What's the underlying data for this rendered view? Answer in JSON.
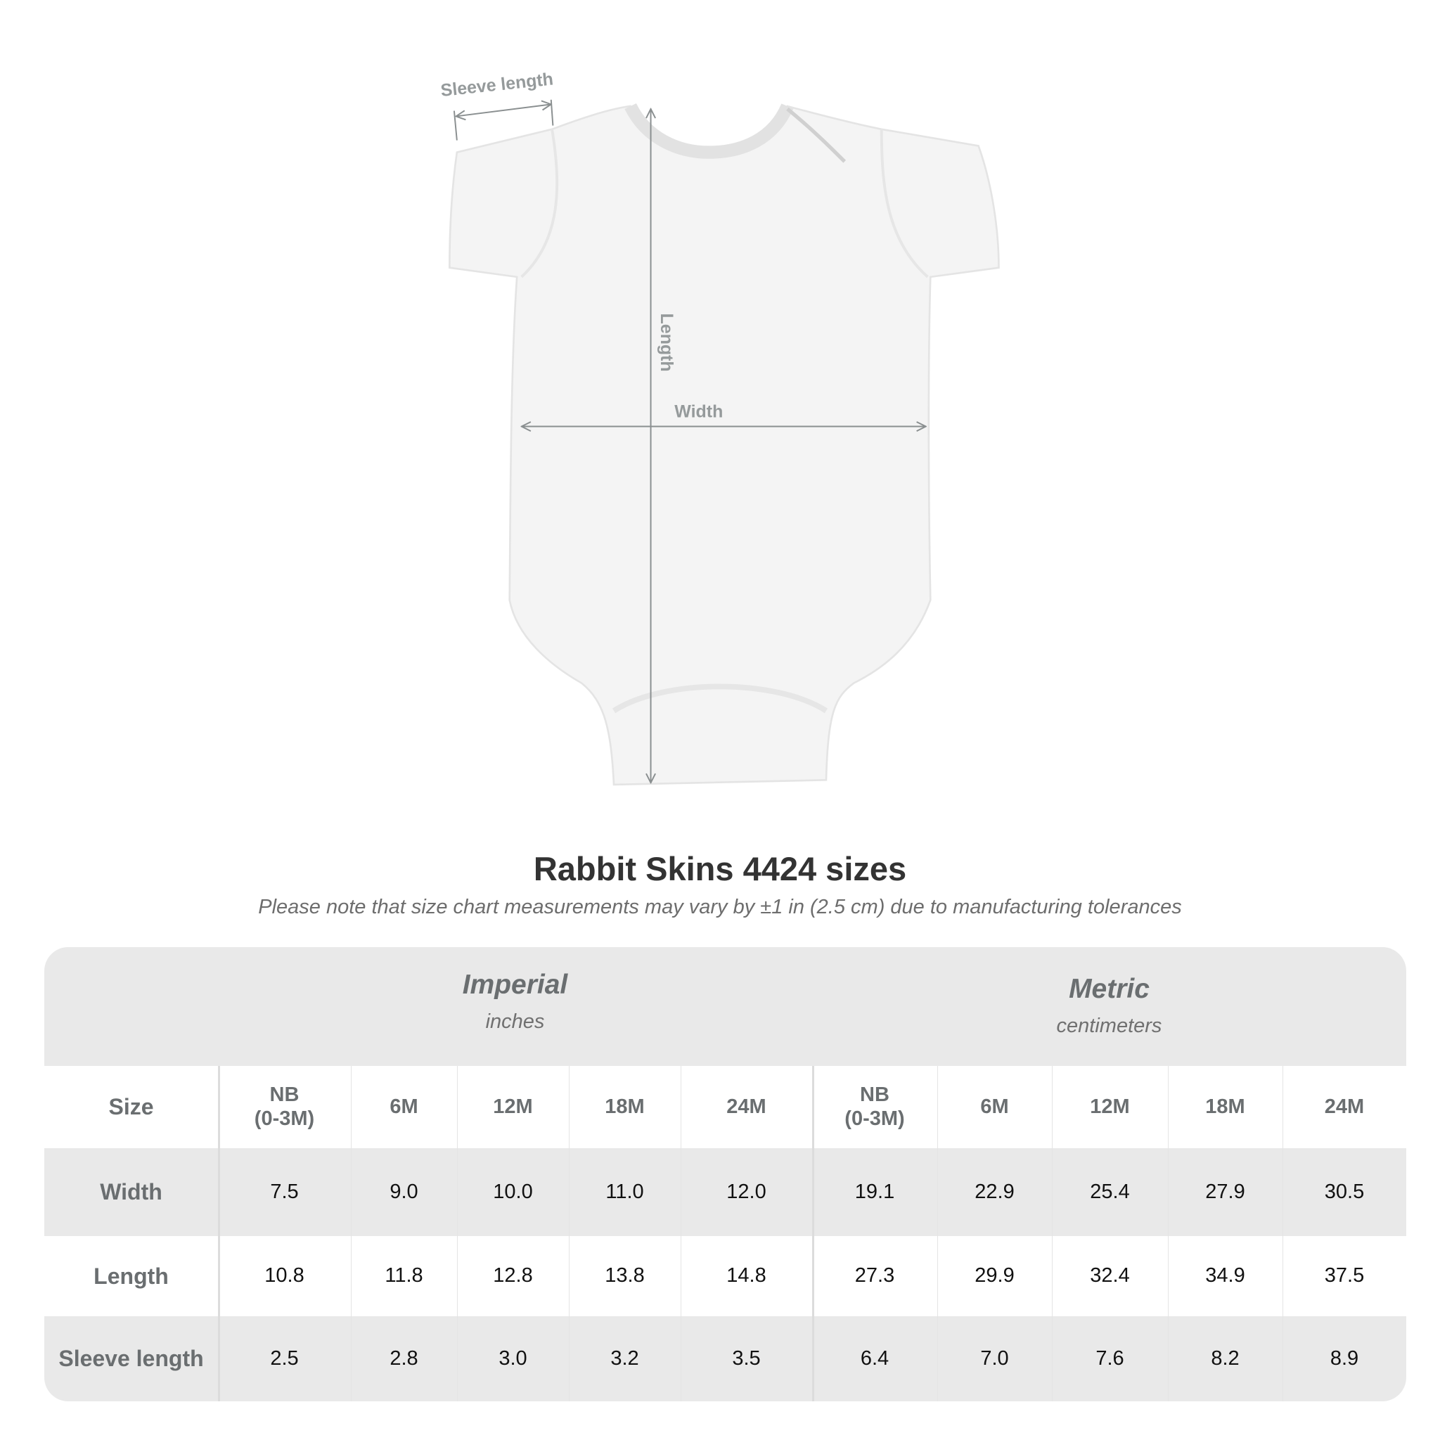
{
  "diagram": {
    "labels": {
      "sleeve": "Sleeve length",
      "length": "Length",
      "width": "Width"
    },
    "garment_color": "#f4f4f4",
    "arrow_color": "#8a8f90"
  },
  "title": "Rabbit Skins 4424 sizes",
  "subtitle": "Please note that size chart measurements may vary by ±1 in (2.5 cm) due to manufacturing tolerances",
  "table": {
    "groups": [
      {
        "name": "Imperial",
        "unit": "inches"
      },
      {
        "name": "Metric",
        "unit": "centimeters"
      }
    ],
    "size_label": "Size",
    "sizes": [
      "NB\n(0-3M)",
      "6M",
      "12M",
      "18M",
      "24M",
      "NB\n(0-3M)",
      "6M",
      "12M",
      "18M",
      "24M"
    ],
    "rows": [
      {
        "label": "Width",
        "values": [
          "7.5",
          "9.0",
          "10.0",
          "11.0",
          "12.0",
          "19.1",
          "22.9",
          "25.4",
          "27.9",
          "30.5"
        ]
      },
      {
        "label": "Length",
        "values": [
          "10.8",
          "11.8",
          "12.8",
          "13.8",
          "14.8",
          "27.3",
          "29.9",
          "32.4",
          "34.9",
          "37.5"
        ]
      },
      {
        "label": "Sleeve length",
        "values": [
          "2.5",
          "2.8",
          "3.0",
          "3.2",
          "3.5",
          "6.4",
          "7.0",
          "7.6",
          "8.2",
          "8.9"
        ]
      }
    ]
  }
}
